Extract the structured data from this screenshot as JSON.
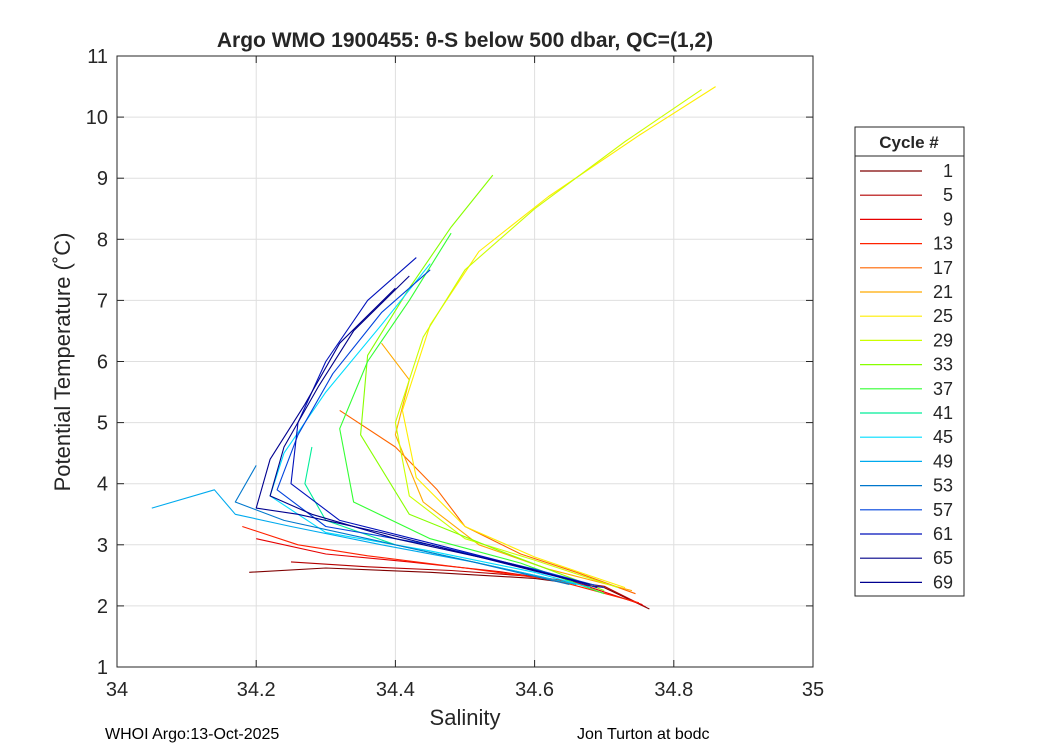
{
  "chart_data": {
    "type": "line",
    "title": "Argo WMO 1900455: θ-S below 500 dbar,  QC=(1,2)",
    "xlabel": "Salinity",
    "ylabel": "Potential Temperature (˚C)",
    "xlim": [
      34,
      35
    ],
    "ylim": [
      1,
      11
    ],
    "x_ticks": [
      "34",
      "34.2",
      "34.4",
      "34.6",
      "34.8",
      "35"
    ],
    "y_ticks": [
      "1",
      "2",
      "3",
      "4",
      "5",
      "6",
      "7",
      "8",
      "9",
      "10",
      "11"
    ],
    "grid": true,
    "legend": {
      "title": "Cycle #",
      "placement": "right-outside",
      "entries": [
        "1",
        "5",
        "9",
        "13",
        "17",
        "21",
        "25",
        "29",
        "33",
        "37",
        "41",
        "45",
        "49",
        "53",
        "57",
        "61",
        "65",
        "69"
      ]
    },
    "series": [
      {
        "name": "1",
        "color": "#7f0000",
        "x": [
          34.19,
          34.3,
          34.45,
          34.6,
          34.7,
          34.765
        ],
        "y": [
          2.55,
          2.62,
          2.55,
          2.45,
          2.3,
          1.95
        ]
      },
      {
        "name": "5",
        "color": "#b30000",
        "x": [
          34.25,
          34.36,
          34.48,
          34.6,
          34.7,
          34.76
        ],
        "y": [
          2.72,
          2.64,
          2.58,
          2.48,
          2.32,
          1.98
        ]
      },
      {
        "name": "9",
        "color": "#e60000",
        "x": [
          34.2,
          34.3,
          34.42,
          34.55,
          34.66,
          34.755
        ],
        "y": [
          3.1,
          2.85,
          2.72,
          2.56,
          2.38,
          2.02
        ]
      },
      {
        "name": "13",
        "color": "#ff2200",
        "x": [
          34.18,
          34.26,
          34.36,
          34.5,
          34.63,
          34.75
        ],
        "y": [
          3.3,
          3.0,
          2.82,
          2.62,
          2.42,
          2.05
        ]
      },
      {
        "name": "17",
        "color": "#ff6600",
        "x": [
          34.32,
          34.4,
          34.46,
          34.5,
          34.58,
          34.66,
          34.745
        ],
        "y": [
          5.2,
          4.6,
          3.9,
          3.3,
          2.85,
          2.55,
          2.2
        ]
      },
      {
        "name": "21",
        "color": "#ffaa00",
        "x": [
          34.38,
          34.42,
          34.4,
          34.44,
          34.52,
          34.62,
          34.74
        ],
        "y": [
          6.3,
          5.7,
          4.8,
          3.7,
          3.0,
          2.6,
          2.25
        ]
      },
      {
        "name": "25",
        "color": "#ffee00",
        "x": [
          34.86,
          34.75,
          34.62,
          34.52,
          34.45,
          34.41,
          34.43,
          34.5,
          34.6,
          34.73
        ],
        "y": [
          10.5,
          9.7,
          8.7,
          7.8,
          6.6,
          5.2,
          4.1,
          3.3,
          2.8,
          2.3
        ]
      },
      {
        "name": "29",
        "color": "#ccff00",
        "x": [
          34.84,
          34.73,
          34.6,
          34.5,
          34.44,
          34.4,
          34.42,
          34.5,
          34.6,
          34.72
        ],
        "y": [
          10.45,
          9.6,
          8.5,
          7.5,
          6.4,
          5.0,
          3.8,
          3.1,
          2.75,
          2.3
        ]
      },
      {
        "name": "33",
        "color": "#88ff00",
        "x": [
          34.54,
          34.48,
          34.42,
          34.36,
          34.35,
          34.42,
          34.55,
          34.7
        ],
        "y": [
          9.05,
          8.2,
          7.2,
          6.1,
          4.8,
          3.5,
          2.9,
          2.25
        ]
      },
      {
        "name": "37",
        "color": "#33ff33",
        "x": [
          34.48,
          34.42,
          34.36,
          34.32,
          34.34,
          34.45,
          34.58,
          34.7
        ],
        "y": [
          8.1,
          7.0,
          6.0,
          4.9,
          3.7,
          3.1,
          2.7,
          2.2
        ]
      },
      {
        "name": "41",
        "color": "#00ee99",
        "x": [
          34.28,
          34.27,
          34.3,
          34.4,
          34.52,
          34.66
        ],
        "y": [
          4.6,
          4.0,
          3.4,
          3.0,
          2.7,
          2.35
        ]
      },
      {
        "name": "45",
        "color": "#00ddff",
        "x": [
          34.45,
          34.38,
          34.3,
          34.24,
          34.22,
          34.3,
          34.45,
          34.6,
          34.68
        ],
        "y": [
          7.6,
          6.6,
          5.5,
          4.5,
          3.8,
          3.2,
          2.9,
          2.55,
          2.3
        ]
      },
      {
        "name": "49",
        "color": "#00aaee",
        "x": [
          34.05,
          34.14,
          34.17,
          34.25,
          34.38,
          34.52,
          34.66
        ],
        "y": [
          3.6,
          3.9,
          3.5,
          3.3,
          3.0,
          2.7,
          2.35
        ]
      },
      {
        "name": "53",
        "color": "#0077cc",
        "x": [
          34.2,
          34.17,
          34.24,
          34.36,
          34.5,
          34.65
        ],
        "y": [
          4.3,
          3.7,
          3.4,
          3.1,
          2.75,
          2.35
        ]
      },
      {
        "name": "57",
        "color": "#0044dd",
        "x": [
          34.45,
          34.38,
          34.31,
          34.26,
          34.23,
          34.3,
          34.45,
          34.6,
          34.7
        ],
        "y": [
          7.5,
          6.8,
          5.8,
          4.8,
          3.9,
          3.3,
          3.0,
          2.6,
          2.3
        ]
      },
      {
        "name": "61",
        "color": "#0011bb",
        "x": [
          34.43,
          34.36,
          34.3,
          34.26,
          34.25,
          34.32,
          34.46,
          34.58,
          34.69
        ],
        "y": [
          7.7,
          7.0,
          6.0,
          5.0,
          4.0,
          3.4,
          3.0,
          2.65,
          2.3
        ]
      },
      {
        "name": "65",
        "color": "#000088",
        "x": [
          34.42,
          34.34,
          34.29,
          34.24,
          34.22,
          34.28,
          34.4,
          34.56,
          34.68
        ],
        "y": [
          7.4,
          6.5,
          5.6,
          4.6,
          3.8,
          3.5,
          3.1,
          2.7,
          2.35
        ]
      },
      {
        "name": "69",
        "color": "#00008f",
        "x": [
          34.4,
          34.32,
          34.27,
          34.22,
          34.2,
          34.26,
          34.38,
          34.52,
          34.66
        ],
        "y": [
          7.2,
          6.3,
          5.3,
          4.4,
          3.6,
          3.5,
          3.2,
          2.8,
          2.4
        ]
      }
    ]
  },
  "footer": {
    "left": "WHOI Argo:13-Oct-2025",
    "right": "Jon Turton at bodc"
  }
}
